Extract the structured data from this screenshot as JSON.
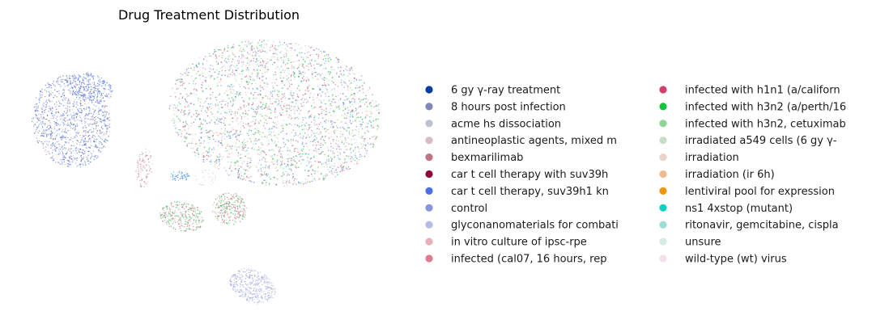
{
  "chart_data": {
    "type": "scatter",
    "title": "Drug Treatment Distribution",
    "xlabel": "",
    "ylabel": "",
    "axes_visible": false,
    "grid": false,
    "legend_placement": "right",
    "legend_columns": 2,
    "series": [
      {
        "name": "6 gy γ-ray treatment",
        "color": "#023fa5"
      },
      {
        "name": "8 hours post infection",
        "color": "#7d87b9"
      },
      {
        "name": "acme hs dissociation",
        "color": "#bec1d4"
      },
      {
        "name": "antineoplastic agents, mixed m",
        "color": "#d6bcc0"
      },
      {
        "name": "bexmarilimab",
        "color": "#bb7784"
      },
      {
        "name": "car t cell therapy with suv39h",
        "color": "#8e063b"
      },
      {
        "name": "car t cell therapy, suv39h1 kn",
        "color": "#4a6fe3"
      },
      {
        "name": "control",
        "color": "#8595e1"
      },
      {
        "name": "glyconanomaterials for combati",
        "color": "#b5bbe3"
      },
      {
        "name": "in vitro culture of ipsc-rpe",
        "color": "#e6afb9"
      },
      {
        "name": "infected (cal07, 16 hours, rep",
        "color": "#e07b91"
      },
      {
        "name": "infected with h1n1 (a/californ",
        "color": "#d33f6a"
      },
      {
        "name": "infected with h3n2 (a/perth/16",
        "color": "#11c638"
      },
      {
        "name": "infected with h3n2, cetuximab",
        "color": "#8dd593"
      },
      {
        "name": "irradiated a549 cells (6 gy γ-",
        "color": "#c6dec7"
      },
      {
        "name": "irradiation",
        "color": "#ead3c6"
      },
      {
        "name": "irradiation (ir 6h)",
        "color": "#f0b98d"
      },
      {
        "name": "lentiviral pool for expression",
        "color": "#ef9708"
      },
      {
        "name": "ns1 4xstop (mutant)",
        "color": "#0fcfc0"
      },
      {
        "name": "ritonavir, gemcitabine, cispla",
        "color": "#9cded6"
      },
      {
        "name": "unsure",
        "color": "#d5eae7"
      },
      {
        "name": "wild-type (wt) virus",
        "color": "#f3e1eb"
      }
    ]
  }
}
